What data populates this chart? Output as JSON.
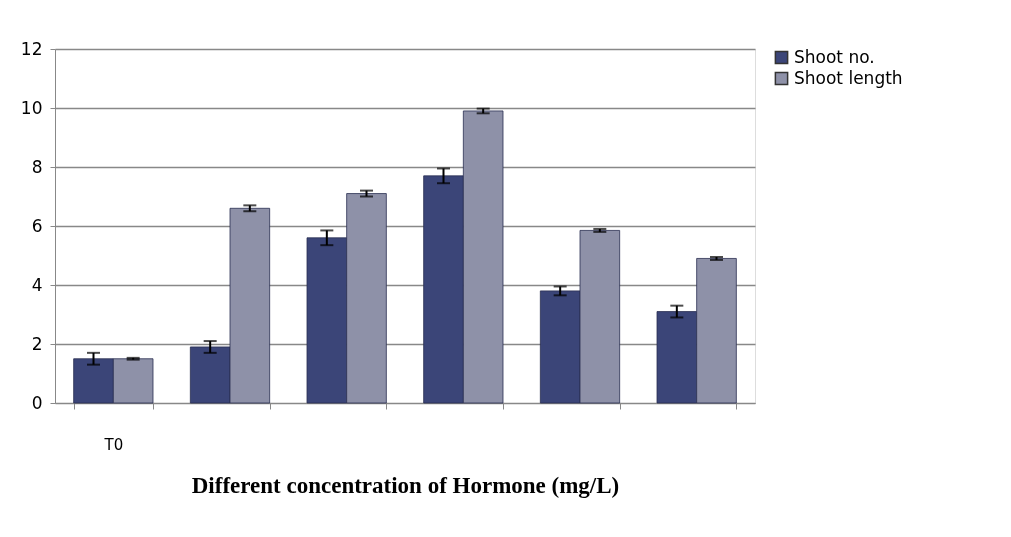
{
  "chart_data": {
    "type": "bar",
    "xlabel": "Different concentration of Hormone (mg/L)",
    "categories": [
      "T0",
      null,
      null,
      null,
      null,
      null
    ],
    "series": [
      {
        "name": "Shoot no.",
        "color": "#3b4578",
        "values": [
          1.5,
          1.9,
          5.6,
          7.7,
          3.8,
          3.1
        ],
        "errors": [
          0.2,
          0.2,
          0.25,
          0.25,
          0.15,
          0.2
        ]
      },
      {
        "name": "Shoot length",
        "color": "#8e91a8",
        "values": [
          1.5,
          6.6,
          7.1,
          9.9,
          5.85,
          4.9
        ],
        "errors": [
          0.03,
          0.1,
          0.1,
          0.08,
          0.05,
          0.05
        ]
      }
    ],
    "ylim": [
      0,
      12
    ],
    "yticks": [
      0,
      2,
      4,
      6,
      8,
      10,
      12
    ],
    "grid": "y",
    "legend": "right"
  }
}
